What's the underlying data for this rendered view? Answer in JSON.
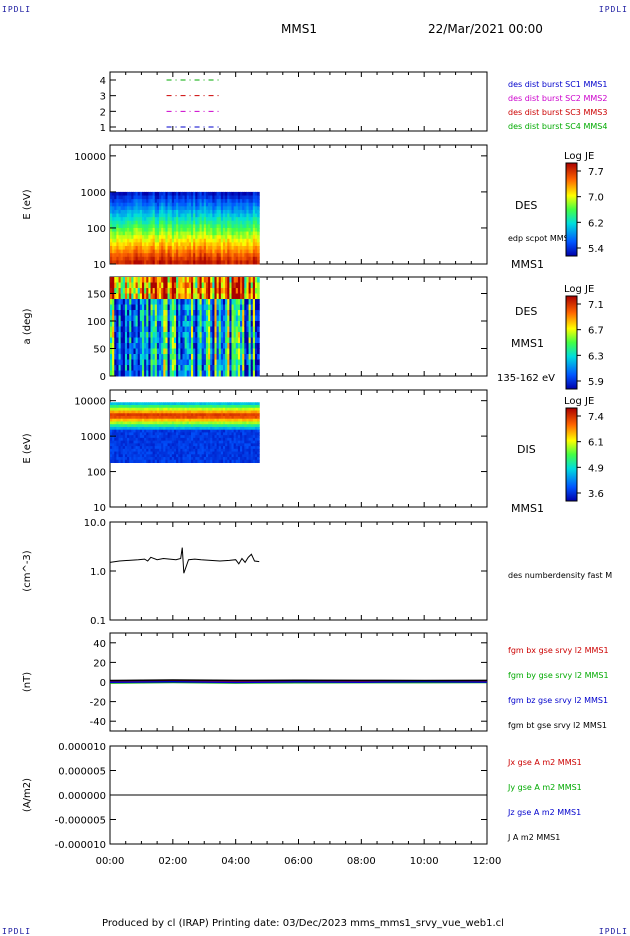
{
  "header": {
    "corner_tl": "IPDLI",
    "corner_tr": "IPDLI",
    "corner_bl": "IPDLI",
    "corner_br": "IPDLI",
    "title": "MMS1",
    "date": "22/Mar/2021 00:00"
  },
  "footer": {
    "text": "Produced by cl (IRAP)   Printing date: 03/Dec/2023   mms_mms1_srvy_vue_web1.cl"
  },
  "colors": {
    "blue": "#0000cc",
    "magenta": "#cc00cc",
    "red": "#cc0000",
    "green": "#00aa00",
    "black": "#000000"
  },
  "x_axis": {
    "ticks": [
      "00:00",
      "02:00",
      "04:00",
      "06:00",
      "08:00",
      "10:00",
      "12:00"
    ]
  },
  "chart_data": [
    {
      "type": "scatter",
      "name": "spacecraft availability",
      "yticks": [
        "4",
        "3",
        "2",
        "1"
      ],
      "series": [
        {
          "name": "des dist burst SC1 MMS1",
          "color": "#0000cc",
          "y": 1,
          "x": [
            1.8,
            3.5
          ]
        },
        {
          "name": "des dist burst SC2 MMS2",
          "color": "#cc00cc",
          "y": 2,
          "x": [
            1.8,
            3.5
          ]
        },
        {
          "name": "des dist burst SC3 MMS3",
          "color": "#cc0000",
          "y": 3,
          "x": [
            1.8,
            3.5
          ]
        },
        {
          "name": "des dist burst SC4 MMS4",
          "color": "#00aa00",
          "y": 4,
          "x": [
            1.8,
            3.5
          ]
        }
      ]
    },
    {
      "type": "heatmap",
      "name": "DES energy spectrogram",
      "ylabel": "E (eV)",
      "yticks": [
        "10000",
        "1000",
        "100",
        "10"
      ],
      "yscale": "log",
      "ylim": [
        10,
        20000
      ],
      "x_range": [
        0,
        4.75
      ],
      "label": "DES",
      "sublabel": "edp scpot MMS1",
      "sat": "MMS1",
      "colorbar": {
        "title": "Log JE",
        "ticks": [
          "7.7",
          "7.0",
          "6.2",
          "5.4"
        ]
      }
    },
    {
      "type": "heatmap",
      "name": "DES pitch angle",
      "ylabel": "a (deg)",
      "yticks": [
        "150",
        "100",
        "50",
        "0"
      ],
      "ylim": [
        0,
        180
      ],
      "x_range": [
        0,
        4.75
      ],
      "label": "DES",
      "sat": "MMS1",
      "range_label": "135-162 eV",
      "colorbar": {
        "title": "Log JE",
        "ticks": [
          "7.1",
          "6.7",
          "6.3",
          "5.9"
        ]
      }
    },
    {
      "type": "heatmap",
      "name": "DIS energy spectrogram",
      "ylabel": "E (eV)",
      "yticks": [
        "10000",
        "1000",
        "100",
        "10"
      ],
      "yscale": "log",
      "ylim": [
        10,
        20000
      ],
      "x_range": [
        0,
        4.75
      ],
      "label": "DIS",
      "sat": "MMS1",
      "colorbar": {
        "title": "Log JE",
        "ticks": [
          "7.4",
          "6.1",
          "4.9",
          "3.6"
        ]
      }
    },
    {
      "type": "line",
      "name": "density",
      "ylabel": "(cm^-3)",
      "yticks": [
        "10.0",
        "1.0",
        "0.1"
      ],
      "yscale": "log",
      "ylim": [
        0.1,
        10
      ],
      "series": [
        {
          "name": "des numberdensity fast M",
          "color": "#000000",
          "x": [
            0,
            0.3,
            0.6,
            0.9,
            1.1,
            1.2,
            1.3,
            1.5,
            1.7,
            1.9,
            2.1,
            2.25,
            2.3,
            2.35,
            2.5,
            2.7,
            2.9,
            3.2,
            3.5,
            3.8,
            4.0,
            4.1,
            4.2,
            4.3,
            4.4,
            4.5,
            4.6,
            4.75
          ],
          "y": [
            1.5,
            1.6,
            1.65,
            1.7,
            1.75,
            1.6,
            1.9,
            1.7,
            1.8,
            1.75,
            1.7,
            1.8,
            3.0,
            0.9,
            1.7,
            1.75,
            1.7,
            1.65,
            1.6,
            1.65,
            1.7,
            1.4,
            1.8,
            1.5,
            1.9,
            2.2,
            1.6,
            1.55
          ]
        }
      ]
    },
    {
      "type": "line",
      "name": "magnetic field",
      "ylabel": "(nT)",
      "yticks": [
        "40",
        "20",
        "0",
        "-20",
        "-40"
      ],
      "ylim": [
        -50,
        50
      ],
      "series": [
        {
          "name": "fgm bx gse srvy l2 MMS1",
          "color": "#cc0000",
          "x": [
            0,
            2,
            4,
            6,
            8,
            10,
            12
          ],
          "y": [
            0.5,
            1,
            0.5,
            0.8,
            0.6,
            0.4,
            0.5
          ]
        },
        {
          "name": "fgm by gse srvy l2 MMS1",
          "color": "#00aa00",
          "x": [
            0,
            2,
            4,
            6,
            8,
            10,
            12
          ],
          "y": [
            -1,
            -0.5,
            -1,
            -0.8,
            -0.6,
            -0.7,
            -0.5
          ]
        },
        {
          "name": "fgm bz gse srvy l2 MMS1",
          "color": "#0000cc",
          "x": [
            0,
            2,
            4,
            6,
            8,
            10,
            12
          ],
          "y": [
            -0.3,
            0.2,
            -0.4,
            0.1,
            -0.2,
            0.3,
            -0.1
          ]
        },
        {
          "name": "fgm bt gse srvy l2 MMS1",
          "color": "#000000",
          "x": [
            0,
            2,
            4,
            6,
            8,
            10,
            12
          ],
          "y": [
            1.5,
            2,
            1.6,
            1.8,
            1.7,
            1.5,
            1.6
          ]
        }
      ]
    },
    {
      "type": "line",
      "name": "current density",
      "ylabel": "(A/m2)",
      "yticks": [
        "0.000010",
        "0.000005",
        "0.000000",
        "-0.000005",
        "-0.000010"
      ],
      "ylim": [
        -1e-05,
        1e-05
      ],
      "series": [
        {
          "name": "Jx gse A m2 MMS1",
          "color": "#cc0000",
          "x": [
            0,
            12
          ],
          "y": [
            0,
            0
          ]
        },
        {
          "name": "Jy gse A m2 MMS1",
          "color": "#00aa00",
          "x": [
            0,
            12
          ],
          "y": [
            0,
            0
          ]
        },
        {
          "name": "Jz gse A m2 MMS1",
          "color": "#0000cc",
          "x": [
            0,
            12
          ],
          "y": [
            0,
            0
          ]
        },
        {
          "name": "J A m2 MMS1",
          "color": "#000000",
          "x": [
            0,
            12
          ],
          "y": [
            0,
            0
          ]
        }
      ]
    }
  ]
}
